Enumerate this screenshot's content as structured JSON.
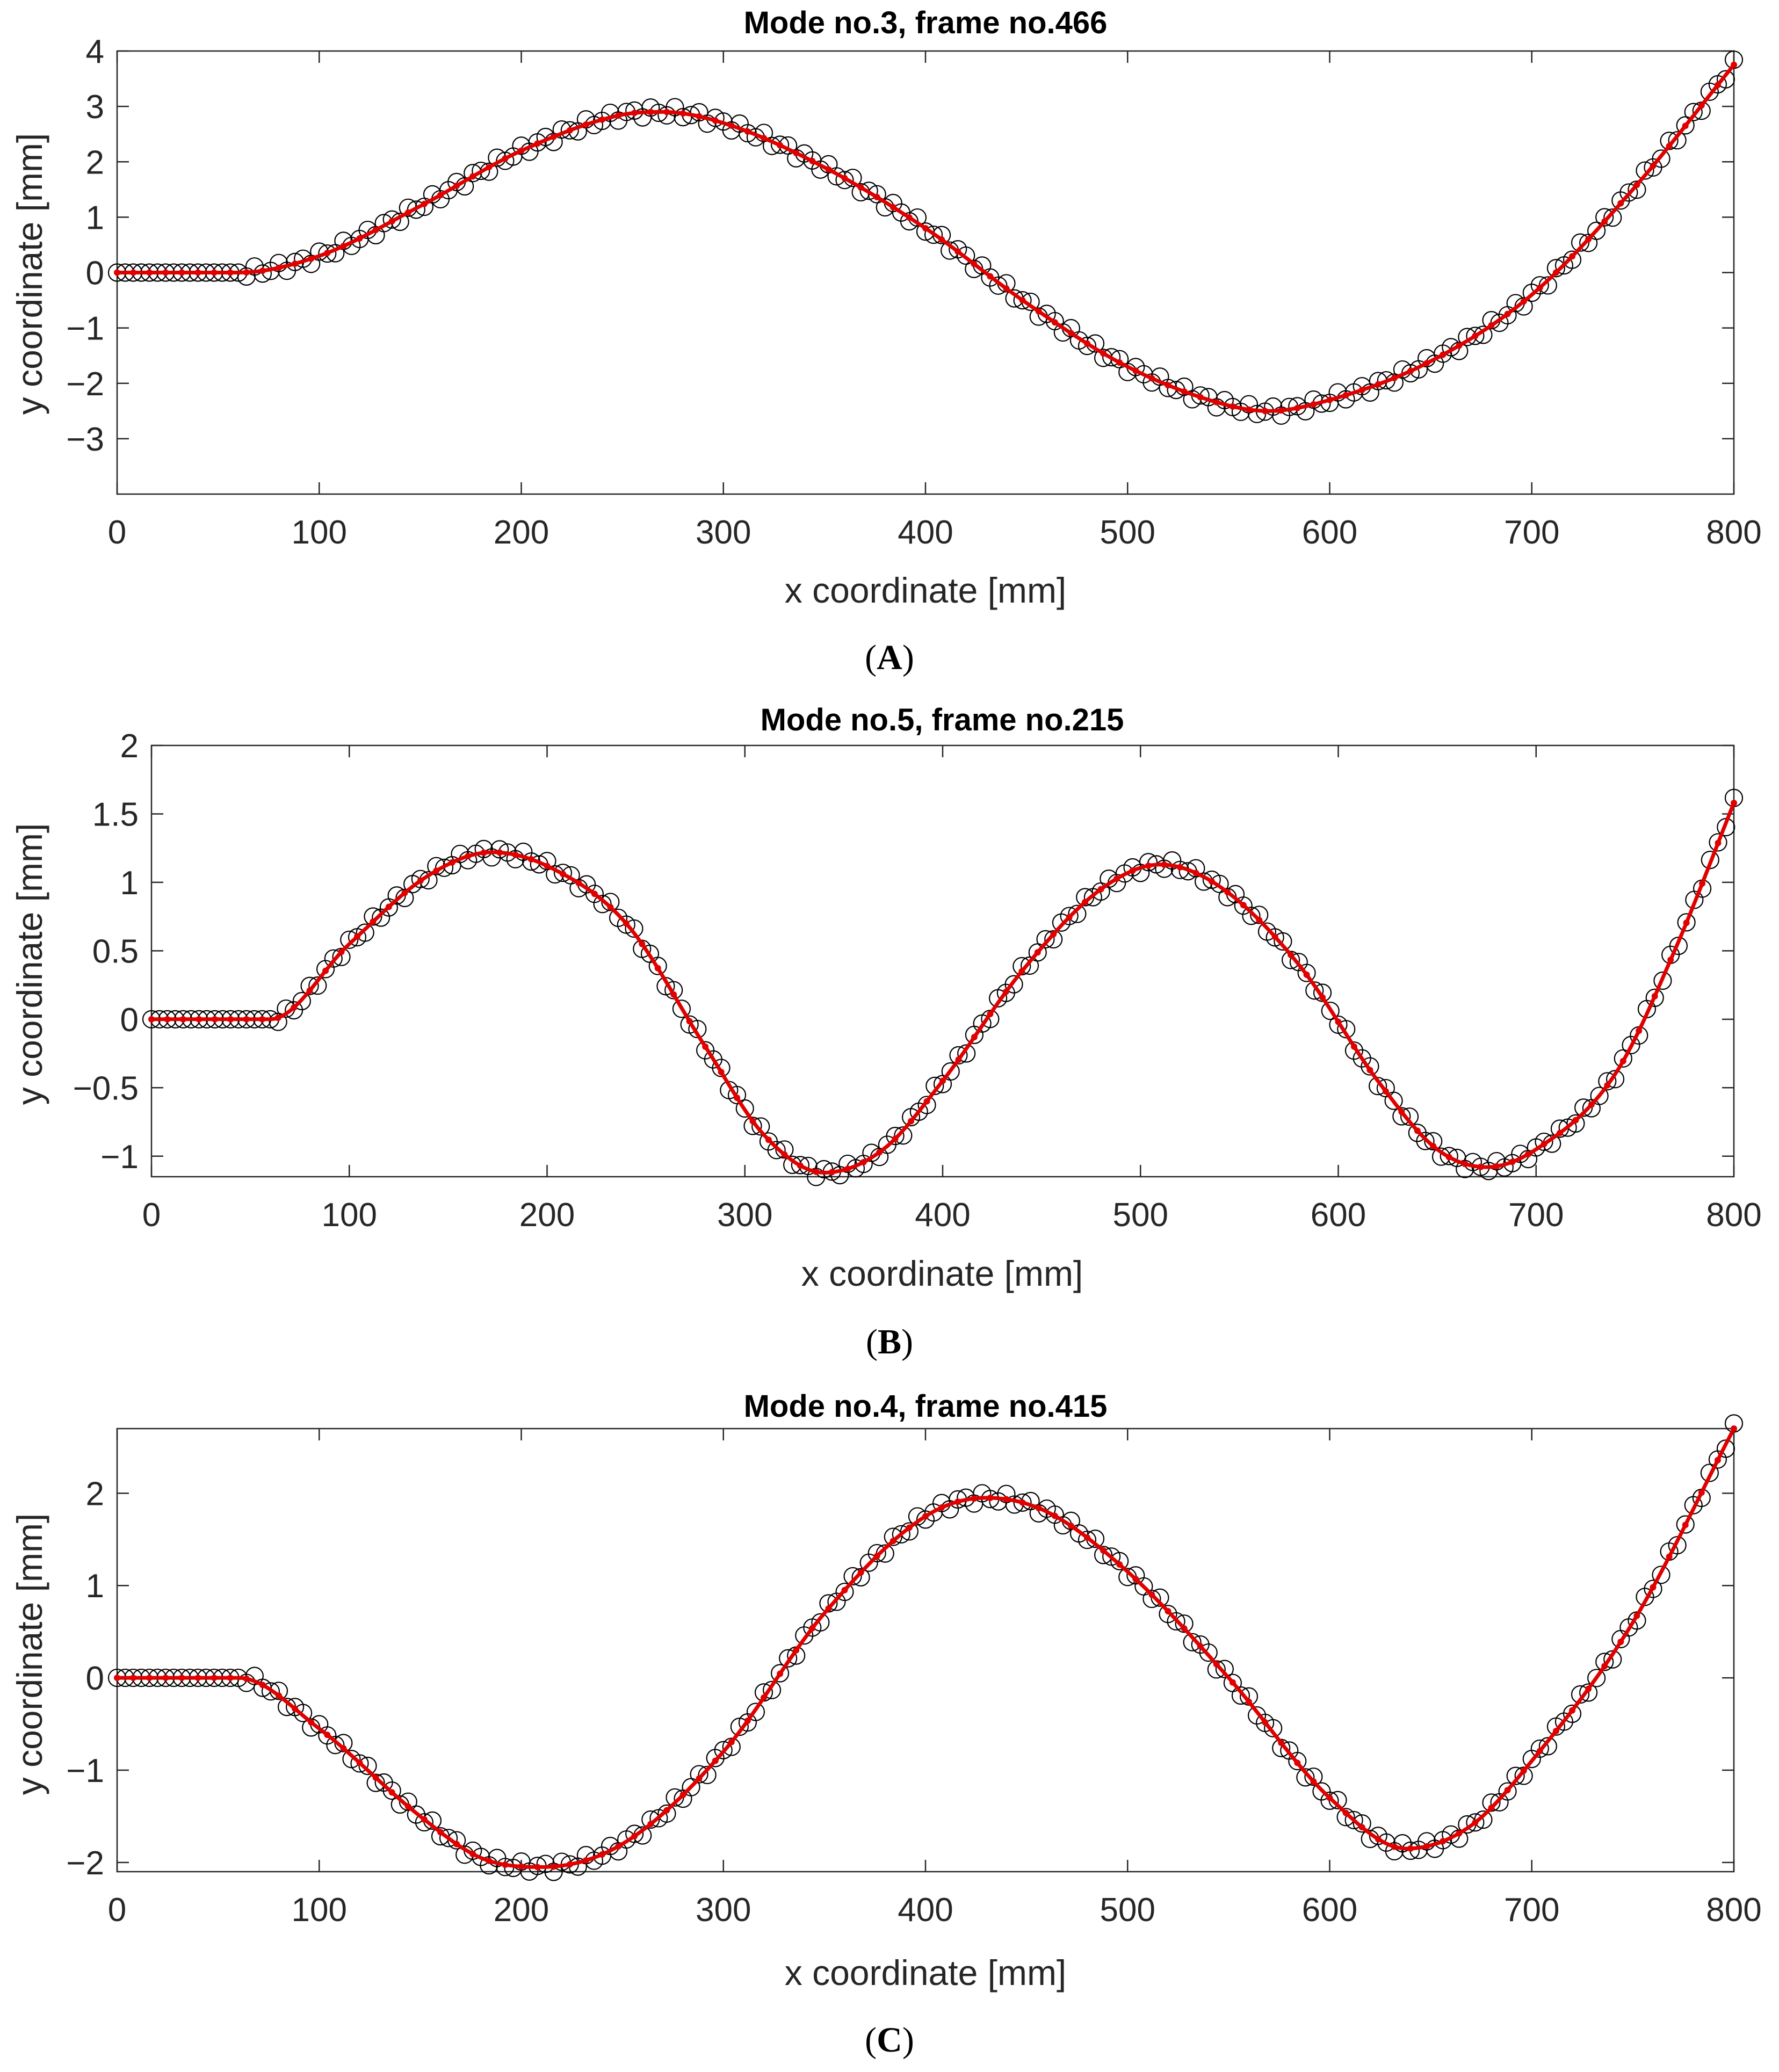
{
  "figure_type": "Mode shape fits of vibrating beam",
  "chart_data": [
    {
      "type": "line",
      "panel_caption": "A",
      "title": "Mode no.3, frame no.466",
      "xlabel": "x coordinate [mm]",
      "ylabel": "y coordinate [mm]",
      "xlim": [
        0,
        800
      ],
      "ylim": [
        -4,
        4
      ],
      "xticks": [
        0,
        100,
        200,
        300,
        400,
        500,
        600,
        700,
        800
      ],
      "yticks": [
        -3,
        -2,
        -1,
        0,
        1,
        2,
        3,
        4
      ],
      "grid": false,
      "series": [
        {
          "name": "measured points",
          "style": "black open circles",
          "x": [
            0,
            60,
            100,
            150,
            200,
            250,
            270,
            300,
            350,
            400,
            450,
            500,
            550,
            570,
            600,
            650,
            700,
            750,
            800
          ],
          "y": [
            0,
            0,
            0.3,
            1.2,
            2.2,
            2.85,
            2.9,
            2.7,
            1.9,
            0.8,
            -0.55,
            -1.7,
            -2.4,
            -2.5,
            -2.3,
            -1.6,
            -0.4,
            1.5,
            3.75
          ]
        },
        {
          "name": "fitted curve",
          "style": "red line",
          "x": [
            0,
            60,
            100,
            150,
            200,
            250,
            270,
            300,
            350,
            400,
            450,
            500,
            550,
            570,
            600,
            650,
            700,
            750,
            800
          ],
          "y": [
            0,
            0,
            0.3,
            1.2,
            2.2,
            2.85,
            2.9,
            2.7,
            1.9,
            0.8,
            -0.55,
            -1.7,
            -2.4,
            -2.5,
            -2.3,
            -1.6,
            -0.4,
            1.5,
            3.75
          ]
        }
      ]
    },
    {
      "type": "line",
      "panel_caption": "B",
      "title": "Mode no.5, frame no.215",
      "xlabel": "x coordinate [mm]",
      "ylabel": "y coordinate [mm]",
      "xlim": [
        0,
        800
      ],
      "ylim": [
        -1.15,
        2
      ],
      "xticks": [
        0,
        100,
        200,
        300,
        400,
        500,
        600,
        700,
        800
      ],
      "yticks": [
        -1,
        -0.5,
        0,
        0.5,
        1,
        1.5,
        2
      ],
      "grid": false,
      "series": [
        {
          "name": "measured points",
          "style": "black open circles",
          "x": [
            0,
            60,
            100,
            140,
            172,
            200,
            240,
            280,
            310,
            340,
            370,
            400,
            440,
            480,
            510,
            540,
            580,
            620,
            650,
            675,
            700,
            740,
            770,
            800
          ],
          "y": [
            0,
            0,
            0.55,
            1.05,
            1.22,
            1.12,
            0.7,
            -0.2,
            -0.85,
            -1.12,
            -0.95,
            -0.45,
            0.35,
            0.95,
            1.13,
            0.97,
            0.4,
            -0.45,
            -0.95,
            -1.08,
            -0.95,
            -0.4,
            0.5,
            1.58
          ]
        },
        {
          "name": "fitted curve",
          "style": "red line",
          "x": [
            0,
            60,
            100,
            140,
            172,
            200,
            240,
            280,
            310,
            340,
            370,
            400,
            440,
            480,
            510,
            540,
            580,
            620,
            650,
            675,
            700,
            740,
            770,
            800
          ],
          "y": [
            0,
            0,
            0.55,
            1.05,
            1.22,
            1.12,
            0.7,
            -0.2,
            -0.85,
            -1.12,
            -0.95,
            -0.45,
            0.35,
            0.95,
            1.13,
            0.97,
            0.4,
            -0.45,
            -0.95,
            -1.08,
            -0.95,
            -0.4,
            0.5,
            1.58
          ]
        }
      ]
    },
    {
      "type": "line",
      "panel_caption": "C",
      "title": "Mode no.4, frame no.415",
      "xlabel": "x coordinate [mm]",
      "ylabel": "y coordinate [mm]",
      "xlim": [
        0,
        800
      ],
      "ylim": [
        -2.1,
        2.7
      ],
      "xticks": [
        0,
        100,
        200,
        300,
        400,
        500,
        600,
        700,
        800
      ],
      "yticks": [
        -2,
        -1,
        0,
        1,
        2
      ],
      "grid": false,
      "series": [
        {
          "name": "measured points",
          "style": "black open circles",
          "x": [
            0,
            60,
            100,
            150,
            180,
            210,
            250,
            300,
            350,
            400,
            430,
            460,
            500,
            550,
            600,
            638,
            670,
            700,
            750,
            800
          ],
          "y": [
            0,
            0,
            -0.55,
            -1.5,
            -1.95,
            -2.05,
            -1.8,
            -0.8,
            0.7,
            1.75,
            1.95,
            1.8,
            1.15,
            0.0,
            -1.3,
            -1.85,
            -1.6,
            -0.9,
            0.6,
            2.7
          ]
        },
        {
          "name": "fitted curve",
          "style": "red line",
          "x": [
            0,
            60,
            100,
            150,
            180,
            210,
            250,
            300,
            350,
            400,
            430,
            460,
            500,
            550,
            600,
            638,
            670,
            700,
            750,
            800
          ],
          "y": [
            0,
            0,
            -0.55,
            -1.5,
            -1.95,
            -2.05,
            -1.8,
            -0.8,
            0.7,
            1.75,
            1.95,
            1.8,
            1.15,
            0.0,
            -1.3,
            -1.85,
            -1.6,
            -0.9,
            0.6,
            2.7
          ]
        }
      ]
    }
  ],
  "colors": {
    "measured": "#000000",
    "fit": "#e00000",
    "axes": "#262626"
  }
}
